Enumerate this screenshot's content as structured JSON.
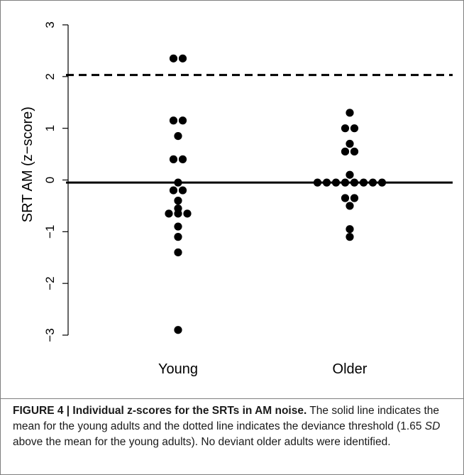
{
  "chart_data": {
    "type": "scatter",
    "title": "",
    "xlabel": "",
    "ylabel": "SRT AM (z−score)",
    "categories": [
      "Young",
      "Older"
    ],
    "ylim": [
      -3,
      3
    ],
    "yticks": [
      "−3",
      "−2",
      "−1",
      "0",
      "1",
      "2",
      "3"
    ],
    "ytick_values": [
      -3,
      -2,
      -1,
      0,
      1,
      2,
      3
    ],
    "grid": false,
    "legend": "none",
    "series": [
      {
        "category": "Young",
        "values": [
          2.35,
          2.35,
          1.15,
          1.15,
          0.85,
          0.4,
          0.4,
          -0.05,
          -0.2,
          -0.2,
          -0.4,
          -0.55,
          -0.65,
          -0.65,
          -0.65,
          -0.9,
          -1.1,
          -1.4,
          -2.9
        ]
      },
      {
        "category": "Older",
        "values": [
          1.3,
          1.0,
          1.0,
          0.7,
          0.55,
          0.55,
          0.1,
          -0.05,
          -0.05,
          -0.05,
          -0.05,
          -0.05,
          -0.05,
          -0.05,
          -0.05,
          -0.35,
          -0.35,
          -0.5,
          -0.95,
          -1.1
        ]
      }
    ],
    "reference_lines": [
      {
        "kind": "solid",
        "y": -0.05
      },
      {
        "kind": "dashed",
        "y": 2.03
      }
    ],
    "colors": {
      "points": "#000000",
      "lines": "#000000",
      "axis": "#000000"
    }
  },
  "caption": {
    "label": "FIGURE 4 | Individual z-scores for the SRTs in AM noise.",
    "text1": " The solid line indicates the mean for the young adults and the dotted line indicates the deviance threshold (1.65 ",
    "sd": "SD",
    "text2": " above the mean for the young adults). No deviant older adults were identified."
  }
}
